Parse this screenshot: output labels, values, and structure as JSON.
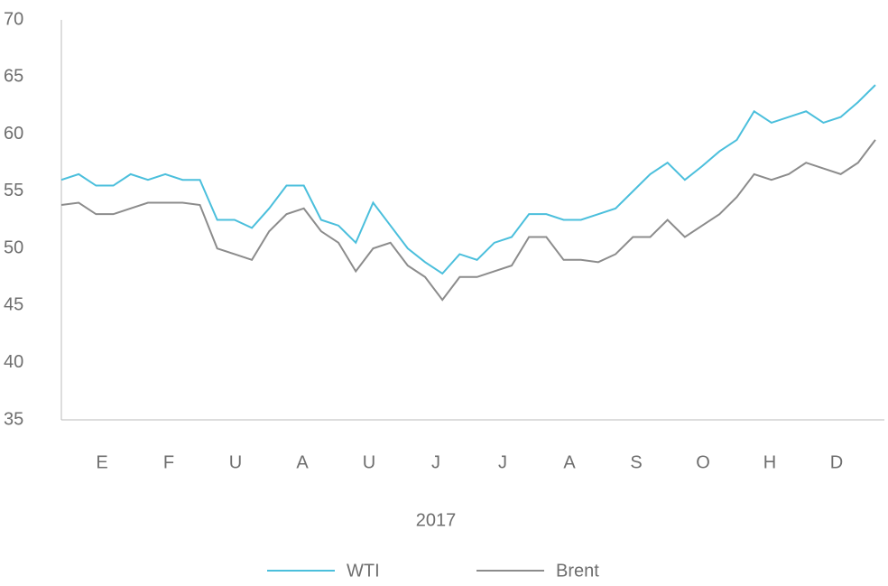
{
  "chart_data": {
    "type": "line",
    "x_labels": [
      "E",
      "F",
      "U",
      "A",
      "U",
      "J",
      "J",
      "A",
      "S",
      "O",
      "H",
      "D"
    ],
    "xlabel": "2017",
    "ylim": [
      35,
      70
    ],
    "yticks": [
      35,
      40,
      45,
      50,
      55,
      60,
      65,
      70
    ],
    "series": [
      {
        "name": "WTI",
        "color": "#4bbfdc",
        "values": [
          56,
          56.5,
          55.5,
          55.5,
          56.5,
          56,
          56.5,
          56,
          56,
          52.5,
          52.5,
          51.8,
          53.5,
          55.5,
          55.5,
          52.5,
          52,
          50.5,
          54,
          52,
          50,
          48.8,
          47.8,
          49.5,
          49,
          50.5,
          51,
          53,
          53,
          52.5,
          52.5,
          53,
          53.5,
          55,
          56.5,
          57.5,
          56,
          57.2,
          58.5,
          59.5,
          62,
          61,
          61.5,
          62,
          61,
          61.5,
          62.8,
          64.3
        ]
      },
      {
        "name": "Brent",
        "color": "#8c8c8c",
        "values": [
          53.8,
          54,
          53,
          53,
          53.5,
          54,
          54,
          54,
          53.8,
          50,
          49.5,
          49,
          51.5,
          53,
          53.5,
          51.5,
          50.5,
          48,
          50,
          50.5,
          48.5,
          47.5,
          45.5,
          47.5,
          47.5,
          48,
          48.5,
          51,
          51,
          49,
          49,
          48.8,
          49.5,
          51,
          51,
          52.5,
          51,
          52,
          53,
          54.5,
          56.5,
          56,
          56.5,
          57.5,
          57,
          56.5,
          57.5,
          59.5
        ]
      }
    ],
    "legend": "bottom"
  }
}
